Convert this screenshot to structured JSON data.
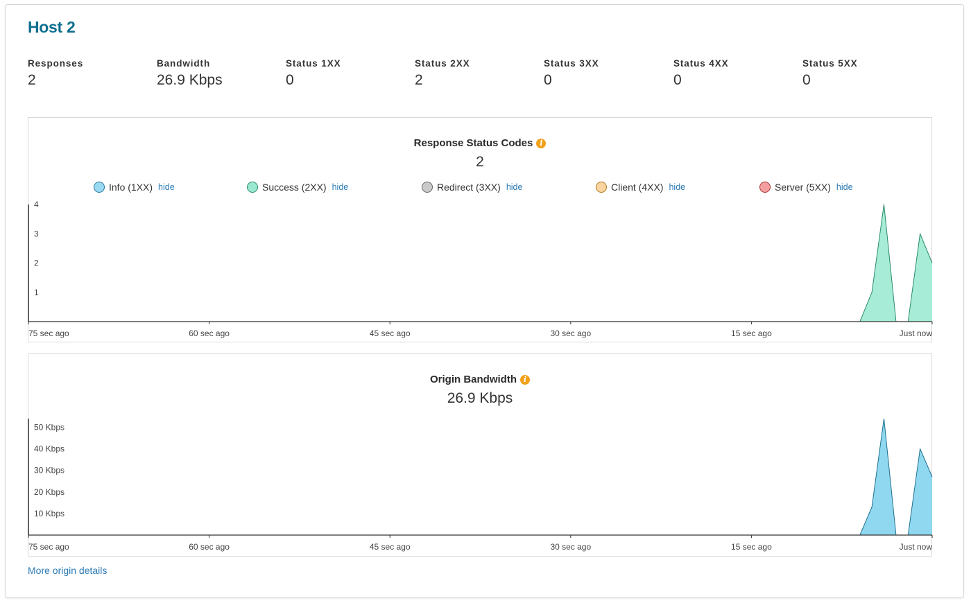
{
  "host": {
    "title": "Host 2"
  },
  "stats": [
    {
      "label": "Responses",
      "value": "2"
    },
    {
      "label": "Bandwidth",
      "value": "26.9 Kbps"
    },
    {
      "label": "Status 1XX",
      "value": "0"
    },
    {
      "label": "Status 2XX",
      "value": "2"
    },
    {
      "label": "Status 3XX",
      "value": "0"
    },
    {
      "label": "Status 4XX",
      "value": "0"
    },
    {
      "label": "Status 5XX",
      "value": "0"
    }
  ],
  "status_panel": {
    "title": "Response Status Codes",
    "value": "2",
    "hide_label": "hide",
    "legend": [
      {
        "label": "Info (1XX)",
        "color": "#9ad9f2",
        "border": "#2a7a9a"
      },
      {
        "label": "Success (2XX)",
        "color": "#9ae8cf",
        "border": "#2a8a6a"
      },
      {
        "label": "Redirect (3XX)",
        "color": "#c9c9c9",
        "border": "#666666"
      },
      {
        "label": "Client (4XX)",
        "color": "#f9d4a0",
        "border": "#b07820"
      },
      {
        "label": "Server (5XX)",
        "color": "#f4a0a0",
        "border": "#b03030"
      }
    ]
  },
  "bandwidth_panel": {
    "title": "Origin Bandwidth",
    "value": "26.9 Kbps"
  },
  "more_link": "More origin details",
  "colors": {
    "accent": "#0e6f8f",
    "link": "#2a7ab5",
    "info_icon": "#f2a018",
    "success_fill": "#a6ecd6",
    "success_stroke": "#2a8a6a",
    "bandwidth_fill": "#8fd8ef",
    "bandwidth_stroke": "#1f6f8f"
  },
  "chart_data": [
    {
      "type": "area",
      "title": "Response Status Codes",
      "x_tick_labels": [
        "75 sec ago",
        "60 sec ago",
        "45 sec ago",
        "30 sec ago",
        "15 sec ago",
        "Just now"
      ],
      "x_unit": "seconds ago",
      "xlim": [
        75,
        0
      ],
      "ylim": [
        0,
        4
      ],
      "y_ticks": [
        1,
        2,
        3,
        4
      ],
      "y_tick_labels": [
        "1",
        "2",
        "3",
        "4"
      ],
      "series": [
        {
          "name": "Success (2XX)",
          "points": [
            [
              75,
              0
            ],
            [
              72,
              0
            ],
            [
              6,
              0
            ],
            [
              5,
              1
            ],
            [
              4,
              4
            ],
            [
              3,
              0
            ],
            [
              2,
              0
            ],
            [
              1,
              3
            ],
            [
              0,
              2
            ]
          ]
        }
      ]
    },
    {
      "type": "area",
      "title": "Origin Bandwidth",
      "x_tick_labels": [
        "75 sec ago",
        "60 sec ago",
        "45 sec ago",
        "30 sec ago",
        "15 sec ago",
        "Just now"
      ],
      "x_unit": "seconds ago",
      "xlim": [
        75,
        0
      ],
      "ylim": [
        0,
        54
      ],
      "y_ticks": [
        10,
        20,
        30,
        40,
        50
      ],
      "y_tick_labels": [
        "10 Kbps",
        "20 Kbps",
        "30 Kbps",
        "40 Kbps",
        "50 Kbps"
      ],
      "series": [
        {
          "points": [
            [
              75,
              0
            ],
            [
              72,
              0
            ],
            [
              6,
              0
            ],
            [
              5,
              13
            ],
            [
              4,
              54
            ],
            [
              3,
              0
            ],
            [
              2,
              0
            ],
            [
              1,
              40
            ],
            [
              0,
              27
            ]
          ]
        }
      ]
    }
  ]
}
